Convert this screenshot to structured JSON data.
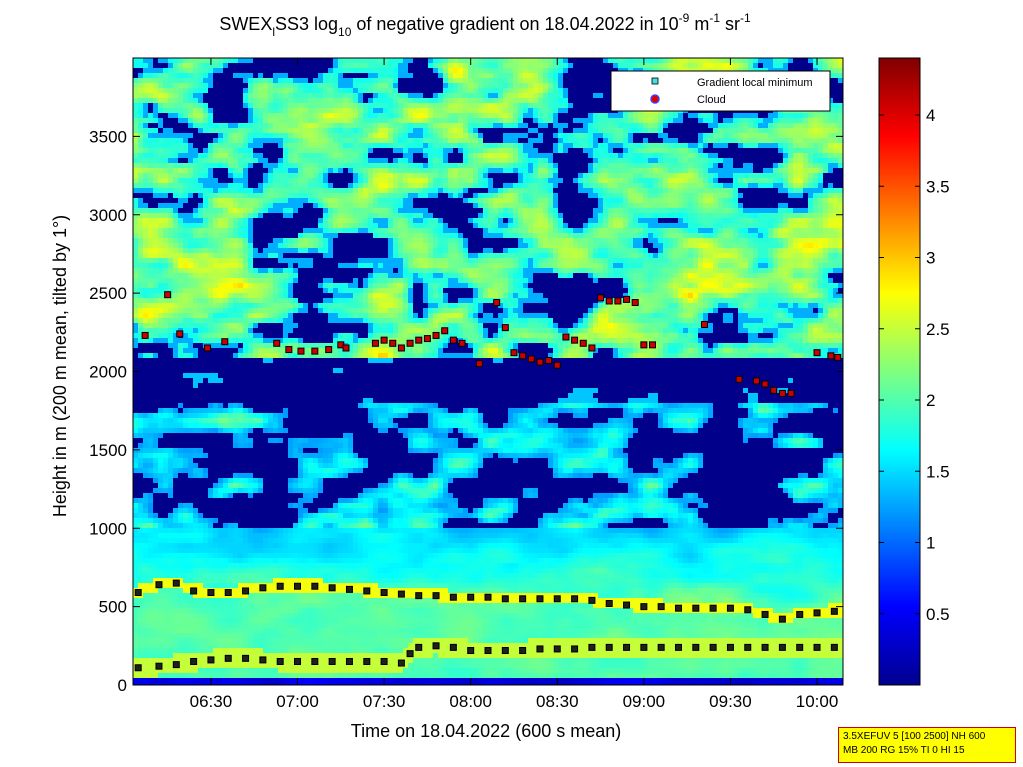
{
  "chart_data": {
    "type": "heatmap",
    "title": {
      "prefix": "SWEX",
      "sub_l": "l",
      "middle": "SS3 log",
      "sub_10": "10",
      "rest": " of negative gradient on 18.04.2022 in 10",
      "sup_9": "-9",
      "unit_m": " m",
      "sup_1a": "-1",
      "unit_sr": " sr",
      "sup_1b": "-1"
    },
    "xlabel": "Time on 18.04.2022 (600 s mean)",
    "ylabel": "Height in m (200 m mean, tilted by 1°)",
    "x_ticks": [
      "06:30",
      "07:00",
      "07:30",
      "08:00",
      "08:30",
      "09:00",
      "09:30",
      "10:00"
    ],
    "x_tick_hours": [
      6.5,
      7.0,
      7.5,
      8.0,
      8.5,
      9.0,
      9.5,
      10.0
    ],
    "xlim_hours": [
      6.05,
      10.15
    ],
    "y_ticks": [
      "0",
      "500",
      "1000",
      "1500",
      "2000",
      "2500",
      "3000",
      "3500"
    ],
    "y_tick_values": [
      0,
      500,
      1000,
      1500,
      2000,
      2500,
      3000,
      3500
    ],
    "ylim": [
      0,
      4000
    ],
    "colorbar": {
      "ticks": [
        "0.5",
        "1",
        "1.5",
        "2",
        "2.5",
        "3",
        "3.5",
        "4"
      ],
      "tick_values": [
        0.5,
        1,
        1.5,
        2,
        2.5,
        3,
        3.5,
        4
      ],
      "range": [
        0,
        4.4
      ],
      "colormap": "jet"
    },
    "legend": {
      "placement": "top-right",
      "entries": [
        {
          "label": "Gradient local minimum",
          "marker": "square",
          "color": "#40e0e0"
        },
        {
          "label": "Cloud",
          "marker": "circle",
          "color": "#e00000",
          "edge": "#4040ff"
        }
      ]
    },
    "series": [
      {
        "name": "Gradient local minimum",
        "layer": "upper",
        "points": [
          [
            6.08,
            590
          ],
          [
            6.2,
            640
          ],
          [
            6.3,
            650
          ],
          [
            6.4,
            600
          ],
          [
            6.5,
            590
          ],
          [
            6.6,
            590
          ],
          [
            6.7,
            600
          ],
          [
            6.8,
            620
          ],
          [
            6.9,
            630
          ],
          [
            7.0,
            630
          ],
          [
            7.1,
            630
          ],
          [
            7.2,
            620
          ],
          [
            7.3,
            610
          ],
          [
            7.4,
            600
          ],
          [
            7.5,
            590
          ],
          [
            7.6,
            580
          ],
          [
            7.7,
            570
          ],
          [
            7.8,
            570
          ],
          [
            7.9,
            560
          ],
          [
            8.0,
            560
          ],
          [
            8.1,
            560
          ],
          [
            8.2,
            550
          ],
          [
            8.3,
            550
          ],
          [
            8.4,
            550
          ],
          [
            8.5,
            550
          ],
          [
            8.6,
            550
          ],
          [
            8.7,
            540
          ],
          [
            8.8,
            520
          ],
          [
            8.9,
            510
          ],
          [
            9.0,
            500
          ],
          [
            9.1,
            500
          ],
          [
            9.2,
            490
          ],
          [
            9.3,
            490
          ],
          [
            9.4,
            490
          ],
          [
            9.5,
            490
          ],
          [
            9.6,
            480
          ],
          [
            9.7,
            450
          ],
          [
            9.8,
            420
          ],
          [
            9.9,
            450
          ],
          [
            10.0,
            460
          ],
          [
            10.1,
            470
          ]
        ]
      },
      {
        "name": "Gradient local minimum",
        "layer": "lower",
        "points": [
          [
            6.08,
            110
          ],
          [
            6.2,
            120
          ],
          [
            6.3,
            130
          ],
          [
            6.4,
            150
          ],
          [
            6.5,
            160
          ],
          [
            6.6,
            170
          ],
          [
            6.7,
            170
          ],
          [
            6.8,
            160
          ],
          [
            6.9,
            150
          ],
          [
            7.0,
            150
          ],
          [
            7.1,
            150
          ],
          [
            7.2,
            150
          ],
          [
            7.3,
            150
          ],
          [
            7.4,
            150
          ],
          [
            7.5,
            150
          ],
          [
            7.6,
            140
          ],
          [
            7.65,
            200
          ],
          [
            7.7,
            240
          ],
          [
            7.8,
            250
          ],
          [
            7.9,
            240
          ],
          [
            8.0,
            220
          ],
          [
            8.1,
            220
          ],
          [
            8.2,
            220
          ],
          [
            8.3,
            220
          ],
          [
            8.4,
            230
          ],
          [
            8.5,
            230
          ],
          [
            8.6,
            230
          ],
          [
            8.7,
            240
          ],
          [
            8.8,
            240
          ],
          [
            8.9,
            240
          ],
          [
            9.0,
            240
          ],
          [
            9.1,
            240
          ],
          [
            9.2,
            240
          ],
          [
            9.3,
            240
          ],
          [
            9.4,
            240
          ],
          [
            9.5,
            240
          ],
          [
            9.6,
            240
          ],
          [
            9.7,
            240
          ],
          [
            9.8,
            240
          ],
          [
            9.9,
            240
          ],
          [
            10.0,
            240
          ],
          [
            10.1,
            240
          ]
        ]
      },
      {
        "name": "Cloud",
        "points": [
          [
            6.12,
            2230
          ],
          [
            6.25,
            2490
          ],
          [
            6.32,
            2240
          ],
          [
            6.48,
            2150
          ],
          [
            6.58,
            2190
          ],
          [
            6.88,
            2180
          ],
          [
            6.95,
            2140
          ],
          [
            7.02,
            2130
          ],
          [
            7.1,
            2130
          ],
          [
            7.18,
            2140
          ],
          [
            7.25,
            2170
          ],
          [
            7.28,
            2150
          ],
          [
            7.45,
            2180
          ],
          [
            7.5,
            2200
          ],
          [
            7.55,
            2180
          ],
          [
            7.6,
            2150
          ],
          [
            7.65,
            2180
          ],
          [
            7.7,
            2200
          ],
          [
            7.75,
            2210
          ],
          [
            7.8,
            2230
          ],
          [
            7.85,
            2260
          ],
          [
            7.9,
            2200
          ],
          [
            7.95,
            2180
          ],
          [
            8.05,
            2050
          ],
          [
            8.15,
            2440
          ],
          [
            8.2,
            2280
          ],
          [
            8.25,
            2120
          ],
          [
            8.3,
            2100
          ],
          [
            8.35,
            2080
          ],
          [
            8.4,
            2060
          ],
          [
            8.45,
            2070
          ],
          [
            8.5,
            2040
          ],
          [
            8.55,
            2220
          ],
          [
            8.6,
            2200
          ],
          [
            8.65,
            2180
          ],
          [
            8.7,
            2150
          ],
          [
            8.75,
            2470
          ],
          [
            8.8,
            2450
          ],
          [
            8.85,
            2450
          ],
          [
            8.9,
            2460
          ],
          [
            8.95,
            2440
          ],
          [
            9.0,
            2170
          ],
          [
            9.05,
            2170
          ],
          [
            9.35,
            2300
          ],
          [
            9.55,
            1950
          ],
          [
            9.65,
            1940
          ],
          [
            9.7,
            1920
          ],
          [
            9.75,
            1880
          ],
          [
            9.8,
            1860
          ],
          [
            9.85,
            1860
          ],
          [
            10.0,
            2120
          ],
          [
            10.08,
            2100
          ],
          [
            10.12,
            2090
          ]
        ]
      }
    ]
  },
  "info_box": {
    "line1": "3.5XEFUV 5 [100 2500] NH 600",
    "line2": "MB 200 RG 15% TI 0 HI 15"
  }
}
